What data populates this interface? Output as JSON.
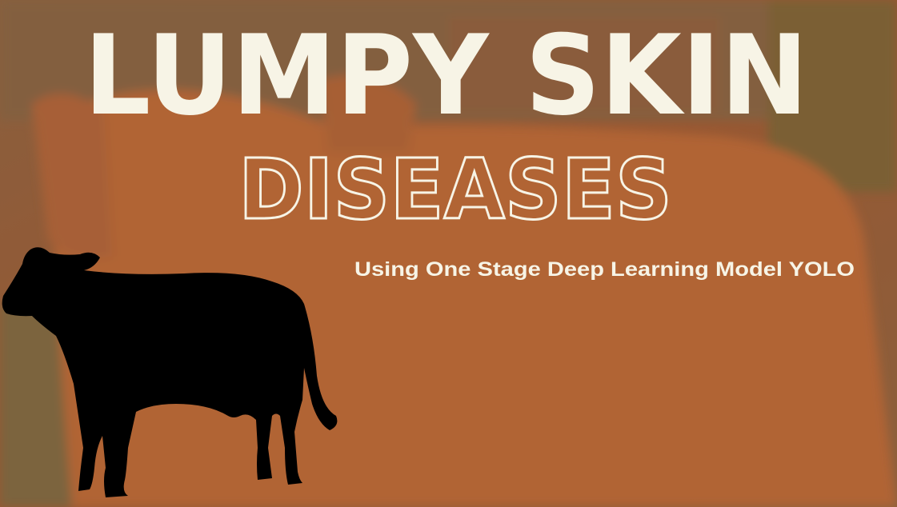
{
  "header": {
    "title": "LUMPY SKIN",
    "subtitle": "DISEASES",
    "tagline": "Using One Stage Deep Learning Model YOLO"
  }
}
